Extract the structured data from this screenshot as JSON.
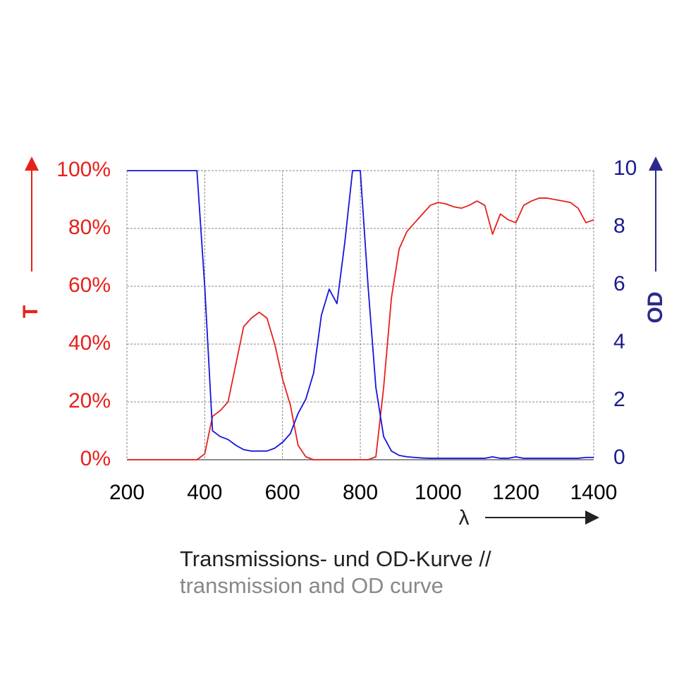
{
  "chart_data": {
    "type": "line",
    "title": "Transmissions- und OD-Kurve //",
    "subtitle": "transmission and OD curve",
    "x_label": "λ",
    "x": [
      200,
      220,
      240,
      260,
      280,
      300,
      320,
      340,
      360,
      380,
      400,
      420,
      440,
      460,
      480,
      500,
      520,
      540,
      560,
      580,
      600,
      620,
      640,
      660,
      680,
      700,
      720,
      740,
      760,
      780,
      800,
      820,
      840,
      860,
      880,
      900,
      920,
      940,
      960,
      980,
      1000,
      1020,
      1040,
      1060,
      1080,
      1100,
      1120,
      1140,
      1160,
      1180,
      1200,
      1220,
      1240,
      1260,
      1280,
      1300,
      1320,
      1340,
      1360,
      1380,
      1400
    ],
    "series": [
      {
        "name": "T",
        "color": "#e8201c",
        "axis": "y",
        "values": [
          0,
          0,
          0,
          0,
          0,
          0,
          0,
          0,
          0,
          0,
          2,
          15,
          17,
          20,
          33,
          46,
          49,
          51,
          49,
          40,
          28,
          19,
          5,
          1,
          0,
          0,
          0,
          0,
          0,
          0,
          0,
          0,
          1,
          25,
          56,
          73,
          79,
          82,
          85,
          88,
          89,
          88.5,
          87.5,
          87,
          88,
          89.5,
          88,
          78,
          85,
          83,
          82,
          88,
          89.5,
          90.5,
          90.5,
          90,
          89.5,
          89,
          87,
          82,
          83
        ]
      },
      {
        "name": "OD",
        "color": "#1414dc",
        "axis": "y2",
        "values": [
          10,
          10,
          10,
          10,
          10,
          10,
          10,
          10,
          10,
          10,
          6,
          1,
          0.8,
          0.7,
          0.5,
          0.35,
          0.3,
          0.3,
          0.3,
          0.4,
          0.6,
          0.9,
          1.6,
          2.1,
          3,
          5,
          5.9,
          5.4,
          7.5,
          10,
          10,
          6,
          2.5,
          0.8,
          0.3,
          0.15,
          0.1,
          0.08,
          0.06,
          0.05,
          0.05,
          0.05,
          0.05,
          0.05,
          0.05,
          0.05,
          0.05,
          0.1,
          0.05,
          0.05,
          0.1,
          0.05,
          0.05,
          0.05,
          0.05,
          0.05,
          0.05,
          0.05,
          0.05,
          0.08,
          0.08
        ]
      }
    ],
    "xlim": [
      200,
      1400
    ],
    "xticks": [
      200,
      400,
      600,
      800,
      1000,
      1200,
      1400
    ],
    "ylim": [
      0,
      100
    ],
    "yticks": [
      {
        "value": 0,
        "label": "0%"
      },
      {
        "value": 20,
        "label": "20%"
      },
      {
        "value": 40,
        "label": "40%"
      },
      {
        "value": 60,
        "label": "60%"
      },
      {
        "value": 80,
        "label": "80%"
      },
      {
        "value": 100,
        "label": "100%"
      }
    ],
    "y2lim": [
      0,
      10
    ],
    "y2ticks": [
      0,
      2,
      4,
      6,
      8,
      10
    ],
    "y_color": "#e8201c",
    "y2_color": "#1a1a8c",
    "grid": true
  }
}
